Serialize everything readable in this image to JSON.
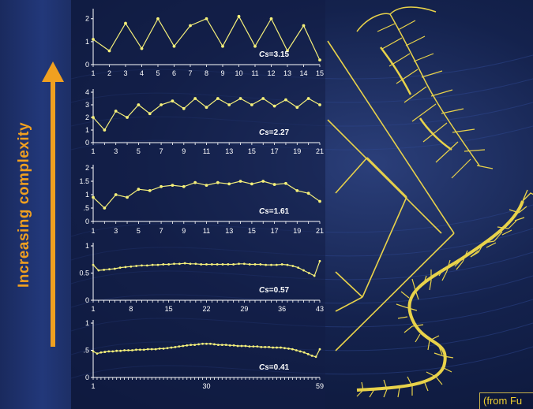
{
  "side_label": "Increasing complexity",
  "source_text": "(from Fu",
  "colors": {
    "accent": "#f0a020",
    "series": "#f5f07a",
    "tree": "#e8d24a",
    "background": "#14224d"
  },
  "chart_data": [
    {
      "type": "line",
      "x_ticks": [
        1,
        2,
        3,
        4,
        5,
        6,
        7,
        8,
        9,
        10,
        11,
        12,
        13,
        14,
        15
      ],
      "y_ticks": [
        0,
        1,
        2
      ],
      "ylim": [
        0,
        2.3
      ],
      "xlim": [
        1,
        15
      ],
      "annotation": {
        "label": "Cs",
        "value": "=3.15"
      },
      "series": [
        {
          "x": [
            1,
            2,
            3,
            4,
            5,
            6,
            7,
            8,
            9,
            10,
            11,
            12,
            13,
            14,
            15
          ],
          "values": [
            1.1,
            0.6,
            1.8,
            0.7,
            2.0,
            0.8,
            1.7,
            2.0,
            0.8,
            2.1,
            0.8,
            2.0,
            0.6,
            1.7,
            0.2
          ]
        }
      ]
    },
    {
      "type": "line",
      "x_ticks": [
        1,
        3,
        5,
        7,
        9,
        11,
        13,
        15,
        17,
        19,
        21
      ],
      "y_ticks": [
        0,
        1,
        2,
        3,
        4
      ],
      "ylim": [
        0,
        4
      ],
      "xlim": [
        1,
        21
      ],
      "annotation": {
        "label": "Cs",
        "value": "=2.27"
      },
      "series": [
        {
          "x": [
            1,
            2,
            3,
            4,
            5,
            6,
            7,
            8,
            9,
            10,
            11,
            12,
            13,
            14,
            15,
            16,
            17,
            18,
            19,
            20,
            21
          ],
          "values": [
            2.0,
            1.0,
            2.5,
            2.0,
            3.0,
            2.3,
            3.0,
            3.3,
            2.7,
            3.5,
            2.8,
            3.5,
            3.0,
            3.5,
            3.0,
            3.5,
            2.9,
            3.4,
            2.8,
            3.5,
            3.0
          ]
        }
      ]
    },
    {
      "type": "line",
      "x_ticks": [
        1,
        3,
        5,
        7,
        9,
        11,
        13,
        15,
        17,
        19,
        21
      ],
      "y_ticks": [
        0,
        0.5,
        1,
        1.5,
        2
      ],
      "y_tick_labels": [
        "0",
        ".5",
        "1",
        "1.5",
        "2"
      ],
      "ylim": [
        0,
        2
      ],
      "xlim": [
        1,
        21
      ],
      "annotation": {
        "label": "Cs",
        "value": "=1.61"
      },
      "series": [
        {
          "x": [
            1,
            2,
            3,
            4,
            5,
            6,
            7,
            8,
            9,
            10,
            11,
            12,
            13,
            14,
            15,
            16,
            17,
            18,
            19,
            20,
            21
          ],
          "values": [
            0.9,
            0.5,
            1.0,
            0.9,
            1.2,
            1.15,
            1.3,
            1.35,
            1.3,
            1.45,
            1.35,
            1.45,
            1.4,
            1.5,
            1.4,
            1.5,
            1.38,
            1.42,
            1.15,
            1.05,
            0.75
          ]
        }
      ]
    },
    {
      "type": "line",
      "x_ticks": [
        1,
        8,
        15,
        22,
        29,
        36,
        43
      ],
      "y_ticks": [
        0,
        0.5,
        1
      ],
      "y_tick_labels": [
        "0",
        "0.5",
        "1"
      ],
      "ylim": [
        0,
        1
      ],
      "xlim": [
        1,
        43
      ],
      "annotation": {
        "label": "Cs",
        "value": "=0.57"
      },
      "series": [
        {
          "x": [
            1,
            2,
            3,
            4,
            5,
            6,
            7,
            8,
            9,
            10,
            11,
            12,
            13,
            14,
            15,
            16,
            17,
            18,
            19,
            20,
            21,
            22,
            23,
            24,
            25,
            26,
            27,
            28,
            29,
            30,
            31,
            32,
            33,
            34,
            35,
            36,
            37,
            38,
            39,
            40,
            41,
            42,
            43
          ],
          "values": [
            0.65,
            0.55,
            0.56,
            0.57,
            0.58,
            0.6,
            0.61,
            0.62,
            0.63,
            0.64,
            0.64,
            0.65,
            0.65,
            0.66,
            0.66,
            0.67,
            0.67,
            0.68,
            0.67,
            0.67,
            0.66,
            0.66,
            0.66,
            0.66,
            0.66,
            0.66,
            0.66,
            0.67,
            0.67,
            0.66,
            0.66,
            0.66,
            0.65,
            0.65,
            0.65,
            0.66,
            0.65,
            0.63,
            0.6,
            0.55,
            0.5,
            0.45,
            0.72
          ]
        }
      ]
    },
    {
      "type": "line",
      "x_ticks": [
        1,
        30,
        59
      ],
      "y_ticks": [
        0,
        0.5,
        1
      ],
      "y_tick_labels": [
        "0",
        ".5",
        "1"
      ],
      "ylim": [
        0,
        1
      ],
      "xlim": [
        1,
        59
      ],
      "annotation": {
        "label": "Cs",
        "value": "=0.41"
      },
      "series": [
        {
          "x": [
            1,
            2,
            3,
            4,
            5,
            6,
            7,
            8,
            9,
            10,
            11,
            12,
            13,
            14,
            15,
            16,
            17,
            18,
            19,
            20,
            21,
            22,
            23,
            24,
            25,
            26,
            27,
            28,
            29,
            30,
            31,
            32,
            33,
            34,
            35,
            36,
            37,
            38,
            39,
            40,
            41,
            42,
            43,
            44,
            45,
            46,
            47,
            48,
            49,
            50,
            51,
            52,
            53,
            54,
            55,
            56,
            57,
            58,
            59
          ],
          "values": [
            0.48,
            0.44,
            0.46,
            0.47,
            0.48,
            0.48,
            0.49,
            0.49,
            0.5,
            0.5,
            0.5,
            0.51,
            0.51,
            0.51,
            0.52,
            0.52,
            0.52,
            0.53,
            0.53,
            0.54,
            0.55,
            0.56,
            0.57,
            0.58,
            0.59,
            0.6,
            0.6,
            0.61,
            0.62,
            0.62,
            0.62,
            0.61,
            0.6,
            0.6,
            0.6,
            0.59,
            0.59,
            0.58,
            0.58,
            0.58,
            0.57,
            0.57,
            0.57,
            0.56,
            0.56,
            0.56,
            0.55,
            0.55,
            0.55,
            0.54,
            0.53,
            0.52,
            0.5,
            0.48,
            0.46,
            0.43,
            0.4,
            0.38,
            0.52
          ]
        }
      ]
    }
  ]
}
